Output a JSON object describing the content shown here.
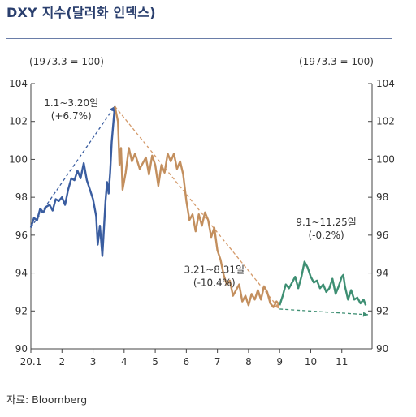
{
  "title": "DXY 지수(달러화 인덱스)",
  "source": "자료: Bloomberg",
  "chart_data": {
    "type": "line",
    "title": "DXY 지수(달러화 인덱스)",
    "unit_left": "(1973.3 = 100)",
    "unit_right": "(1973.3 = 100)",
    "ylim": [
      90,
      104
    ],
    "yticks": [
      90,
      92,
      94,
      96,
      98,
      100,
      102,
      104
    ],
    "xlim": [
      1,
      12
    ],
    "xticks": [
      {
        "x": 1,
        "label": "20.1"
      },
      {
        "x": 2,
        "label": "2"
      },
      {
        "x": 3,
        "label": "3"
      },
      {
        "x": 4,
        "label": "4"
      },
      {
        "x": 5,
        "label": "5"
      },
      {
        "x": 6,
        "label": "6"
      },
      {
        "x": 7,
        "label": "7"
      },
      {
        "x": 8,
        "label": "8"
      },
      {
        "x": 9,
        "label": "9"
      },
      {
        "x": 10,
        "label": "10"
      },
      {
        "x": 11,
        "label": "11"
      }
    ],
    "series": [
      {
        "color": "#3a5da0",
        "points": [
          [
            1.0,
            96.4
          ],
          [
            1.1,
            96.9
          ],
          [
            1.2,
            96.8
          ],
          [
            1.3,
            97.4
          ],
          [
            1.4,
            97.2
          ],
          [
            1.5,
            97.5
          ],
          [
            1.6,
            97.6
          ],
          [
            1.7,
            97.3
          ],
          [
            1.8,
            97.9
          ],
          [
            1.9,
            97.8
          ],
          [
            2.0,
            98.0
          ],
          [
            2.1,
            97.6
          ],
          [
            2.2,
            98.4
          ],
          [
            2.3,
            99.0
          ],
          [
            2.4,
            98.9
          ],
          [
            2.5,
            99.4
          ],
          [
            2.6,
            99.0
          ],
          [
            2.7,
            99.8
          ],
          [
            2.8,
            98.9
          ],
          [
            2.9,
            98.4
          ],
          [
            3.0,
            97.9
          ],
          [
            3.1,
            97.0
          ],
          [
            3.15,
            95.5
          ],
          [
            3.22,
            96.5
          ],
          [
            3.3,
            94.9
          ],
          [
            3.4,
            97.8
          ],
          [
            3.45,
            98.8
          ],
          [
            3.5,
            98.2
          ],
          [
            3.55,
            99.3
          ],
          [
            3.6,
            100.9
          ],
          [
            3.7,
            102.8
          ]
        ]
      },
      {
        "color": "#c38f5e",
        "points": [
          [
            3.7,
            102.8
          ],
          [
            3.8,
            102.0
          ],
          [
            3.85,
            99.7
          ],
          [
            3.9,
            100.6
          ],
          [
            3.95,
            98.4
          ],
          [
            4.05,
            99.3
          ],
          [
            4.15,
            100.6
          ],
          [
            4.25,
            99.9
          ],
          [
            4.35,
            100.3
          ],
          [
            4.5,
            99.5
          ],
          [
            4.6,
            99.8
          ],
          [
            4.7,
            100.1
          ],
          [
            4.8,
            99.2
          ],
          [
            4.9,
            100.2
          ],
          [
            5.0,
            99.7
          ],
          [
            5.1,
            98.6
          ],
          [
            5.2,
            99.7
          ],
          [
            5.3,
            99.3
          ],
          [
            5.4,
            100.3
          ],
          [
            5.5,
            99.9
          ],
          [
            5.6,
            100.3
          ],
          [
            5.7,
            99.5
          ],
          [
            5.8,
            99.9
          ],
          [
            5.9,
            99.2
          ],
          [
            6.0,
            97.8
          ],
          [
            6.1,
            96.8
          ],
          [
            6.2,
            97.1
          ],
          [
            6.3,
            96.2
          ],
          [
            6.4,
            97.1
          ],
          [
            6.5,
            96.5
          ],
          [
            6.6,
            97.2
          ],
          [
            6.7,
            96.8
          ],
          [
            6.8,
            95.9
          ],
          [
            6.9,
            96.4
          ],
          [
            7.0,
            95.2
          ],
          [
            7.1,
            94.7
          ],
          [
            7.2,
            93.9
          ],
          [
            7.3,
            93.4
          ],
          [
            7.4,
            93.6
          ],
          [
            7.5,
            92.8
          ],
          [
            7.6,
            93.1
          ],
          [
            7.7,
            93.4
          ],
          [
            7.8,
            92.5
          ],
          [
            7.9,
            92.8
          ],
          [
            8.0,
            92.3
          ],
          [
            8.1,
            92.9
          ],
          [
            8.2,
            92.6
          ],
          [
            8.3,
            93.1
          ],
          [
            8.4,
            92.6
          ],
          [
            8.5,
            93.3
          ],
          [
            8.6,
            93.0
          ],
          [
            8.7,
            92.4
          ],
          [
            8.8,
            92.2
          ],
          [
            8.9,
            92.5
          ],
          [
            9.0,
            92.3
          ]
        ]
      },
      {
        "color": "#3e8f73",
        "points": [
          [
            9.0,
            92.3
          ],
          [
            9.1,
            92.8
          ],
          [
            9.2,
            93.4
          ],
          [
            9.3,
            93.2
          ],
          [
            9.4,
            93.5
          ],
          [
            9.5,
            93.8
          ],
          [
            9.6,
            93.2
          ],
          [
            9.7,
            93.8
          ],
          [
            9.8,
            94.6
          ],
          [
            9.9,
            94.3
          ],
          [
            10.0,
            93.8
          ],
          [
            10.1,
            93.5
          ],
          [
            10.2,
            93.6
          ],
          [
            10.3,
            93.2
          ],
          [
            10.4,
            93.4
          ],
          [
            10.5,
            93.0
          ],
          [
            10.6,
            93.2
          ],
          [
            10.7,
            93.7
          ],
          [
            10.8,
            92.9
          ],
          [
            10.9,
            93.3
          ],
          [
            11.0,
            93.8
          ],
          [
            11.05,
            93.9
          ],
          [
            11.1,
            93.3
          ],
          [
            11.2,
            92.6
          ],
          [
            11.3,
            93.1
          ],
          [
            11.4,
            92.6
          ],
          [
            11.5,
            92.7
          ],
          [
            11.6,
            92.4
          ],
          [
            11.7,
            92.6
          ],
          [
            11.77,
            92.3
          ]
        ]
      }
    ],
    "trendlines": [
      {
        "color": "#3a5da0",
        "from": [
          1.0,
          96.4
        ],
        "to": [
          3.7,
          102.8
        ]
      },
      {
        "color": "#d49a6a",
        "from": [
          3.7,
          102.8
        ],
        "to": [
          9.0,
          92.1
        ]
      },
      {
        "color": "#3e8f73",
        "from": [
          9.0,
          92.1
        ],
        "to": [
          11.85,
          91.8
        ]
      }
    ],
    "annotations": [
      {
        "lines": [
          "1.1~3.20일",
          "(+6.7%)"
        ],
        "x": 2.3,
        "y": 102.8
      },
      {
        "lines": [
          "3.21~8.31일",
          "(-10.4%)"
        ],
        "x": 6.9,
        "y": 94.0
      },
      {
        "lines": [
          "9.1~11.25일",
          "(-0.2%)"
        ],
        "x": 10.5,
        "y": 96.5
      }
    ]
  }
}
